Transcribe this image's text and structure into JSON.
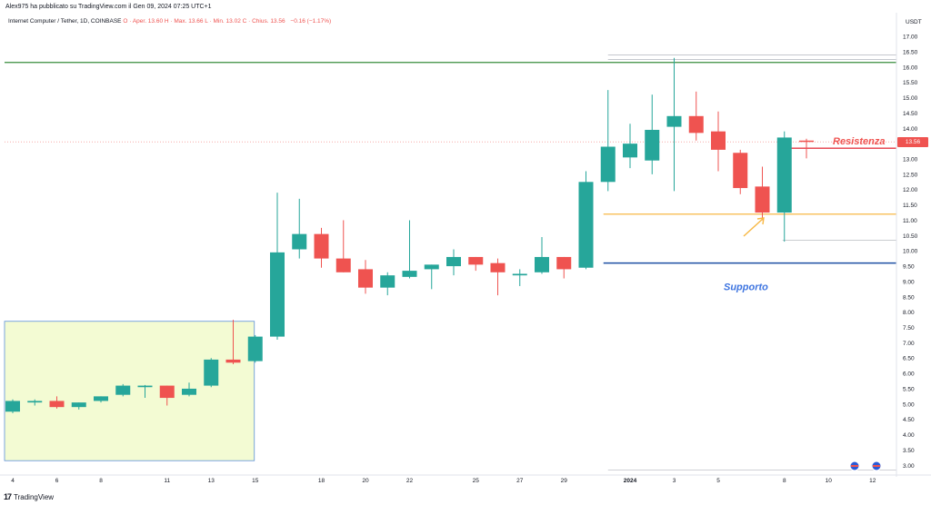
{
  "header": {
    "published": "Alex975 ha pubblicato su TradingView.com il Gen 09, 2024 07:25 UTC+1",
    "currency": "USDT"
  },
  "legend": {
    "symbol": "Internet Computer / Tether, 1D, COINBASE",
    "ohlc": "O · Aper. 13.60  H · Max. 13.66  L · Min. 13.02  C · Chius. 13.56",
    "change": "−0.16 (−1.17%)"
  },
  "footer": {
    "brand": "TradingView",
    "logo": "17"
  },
  "annotations": {
    "resistance": "Resistenza",
    "support": "Supporto"
  },
  "colors": {
    "up": "#26a69a",
    "down": "#ef5350",
    "green_line": "#388e3c",
    "orange_line": "#f7b844",
    "blue_line": "#1e4fa3",
    "red_line": "#e53945",
    "box_fill": "#f3fbd3",
    "box_border": "#5b8fd9",
    "text_annot_red": "#ef5350",
    "text_annot_blue": "#3d74e0"
  },
  "chart_data": {
    "type": "candlestick",
    "ylim": [
      2.8,
      17.3
    ],
    "y_ticks": [
      "3.00",
      "3.50",
      "4.00",
      "4.50",
      "5.00",
      "5.50",
      "6.00",
      "6.50",
      "7.00",
      "7.50",
      "8.00",
      "8.50",
      "9.00",
      "9.50",
      "10.00",
      "10.50",
      "11.00",
      "11.50",
      "12.00",
      "12.50",
      "13.00",
      "13.50",
      "14.00",
      "14.50",
      "15.00",
      "15.50",
      "16.00",
      "16.50",
      "17.00"
    ],
    "x_ticks": [
      {
        "i": 0,
        "label": "4"
      },
      {
        "i": 2,
        "label": "6"
      },
      {
        "i": 4,
        "label": "8"
      },
      {
        "i": 7,
        "label": "11"
      },
      {
        "i": 9,
        "label": "13"
      },
      {
        "i": 11,
        "label": "15"
      },
      {
        "i": 14,
        "label": "18"
      },
      {
        "i": 16,
        "label": "20"
      },
      {
        "i": 18,
        "label": "22"
      },
      {
        "i": 21,
        "label": "25"
      },
      {
        "i": 23,
        "label": "27"
      },
      {
        "i": 25,
        "label": "29"
      },
      {
        "i": 28,
        "label": "2024"
      },
      {
        "i": 30,
        "label": "3"
      },
      {
        "i": 32,
        "label": "5"
      },
      {
        "i": 35,
        "label": "8"
      },
      {
        "i": 37,
        "label": "10"
      },
      {
        "i": 39,
        "label": "12"
      }
    ],
    "candles": [
      {
        "o": 4.75,
        "h": 5.15,
        "l": 4.7,
        "c": 5.1
      },
      {
        "o": 5.05,
        "h": 5.15,
        "l": 4.95,
        "c": 5.1
      },
      {
        "o": 5.1,
        "h": 5.25,
        "l": 4.85,
        "c": 4.9
      },
      {
        "o": 4.9,
        "h": 5.05,
        "l": 4.82,
        "c": 5.05
      },
      {
        "o": 5.1,
        "h": 5.25,
        "l": 5.05,
        "c": 5.25
      },
      {
        "o": 5.3,
        "h": 5.65,
        "l": 5.25,
        "c": 5.6
      },
      {
        "o": 5.55,
        "h": 5.62,
        "l": 5.2,
        "c": 5.6
      },
      {
        "o": 5.6,
        "h": 5.6,
        "l": 4.95,
        "c": 5.2
      },
      {
        "o": 5.3,
        "h": 5.7,
        "l": 5.25,
        "c": 5.5
      },
      {
        "o": 5.6,
        "h": 6.5,
        "l": 5.55,
        "c": 6.45
      },
      {
        "o": 6.45,
        "h": 7.75,
        "l": 6.3,
        "c": 6.35
      },
      {
        "o": 6.4,
        "h": 7.25,
        "l": 6.35,
        "c": 7.2
      },
      {
        "o": 7.2,
        "h": 11.9,
        "l": 7.1,
        "c": 9.95
      },
      {
        "o": 10.05,
        "h": 11.7,
        "l": 9.75,
        "c": 10.55
      },
      {
        "o": 10.55,
        "h": 10.75,
        "l": 9.45,
        "c": 9.75
      },
      {
        "o": 9.75,
        "h": 11.0,
        "l": 9.3,
        "c": 9.3
      },
      {
        "o": 9.4,
        "h": 9.7,
        "l": 8.6,
        "c": 8.8
      },
      {
        "o": 8.8,
        "h": 9.3,
        "l": 8.55,
        "c": 9.2
      },
      {
        "o": 9.15,
        "h": 11.0,
        "l": 9.1,
        "c": 9.35
      },
      {
        "o": 9.4,
        "h": 9.55,
        "l": 8.75,
        "c": 9.55
      },
      {
        "o": 9.5,
        "h": 10.05,
        "l": 9.2,
        "c": 9.8
      },
      {
        "o": 9.8,
        "h": 9.8,
        "l": 9.35,
        "c": 9.55
      },
      {
        "o": 9.6,
        "h": 9.75,
        "l": 8.55,
        "c": 9.3
      },
      {
        "o": 9.2,
        "h": 9.4,
        "l": 8.85,
        "c": 9.25
      },
      {
        "o": 9.3,
        "h": 10.45,
        "l": 9.25,
        "c": 9.8
      },
      {
        "o": 9.8,
        "h": 9.8,
        "l": 9.1,
        "c": 9.4
      },
      {
        "o": 9.45,
        "h": 12.6,
        "l": 9.4,
        "c": 12.25
      },
      {
        "o": 12.25,
        "h": 15.25,
        "l": 11.95,
        "c": 13.4
      },
      {
        "o": 13.05,
        "h": 14.15,
        "l": 12.7,
        "c": 13.5
      },
      {
        "o": 12.95,
        "h": 15.1,
        "l": 12.5,
        "c": 13.95
      },
      {
        "o": 14.05,
        "h": 16.3,
        "l": 11.95,
        "c": 14.4
      },
      {
        "o": 14.4,
        "h": 15.2,
        "l": 13.6,
        "c": 13.85
      },
      {
        "o": 13.9,
        "h": 14.55,
        "l": 12.6,
        "c": 13.3
      },
      {
        "o": 13.2,
        "h": 13.3,
        "l": 11.85,
        "c": 12.05
      },
      {
        "o": 12.1,
        "h": 12.75,
        "l": 11.0,
        "c": 11.25
      },
      {
        "o": 11.25,
        "h": 13.9,
        "l": 10.3,
        "c": 13.7
      },
      {
        "o": 13.6,
        "h": 13.66,
        "l": 13.02,
        "c": 13.56
      }
    ],
    "levels": {
      "green_line": 16.15,
      "resistance": 13.35,
      "orange_line": 11.2,
      "support": 9.6,
      "price_line": 13.56,
      "gray_top1": 16.4,
      "gray_top2": 16.25
    },
    "price_label": "13.56",
    "box": {
      "i_start": -1,
      "i_end": 11,
      "y_top": 7.7,
      "y_bottom": 3.15
    }
  }
}
